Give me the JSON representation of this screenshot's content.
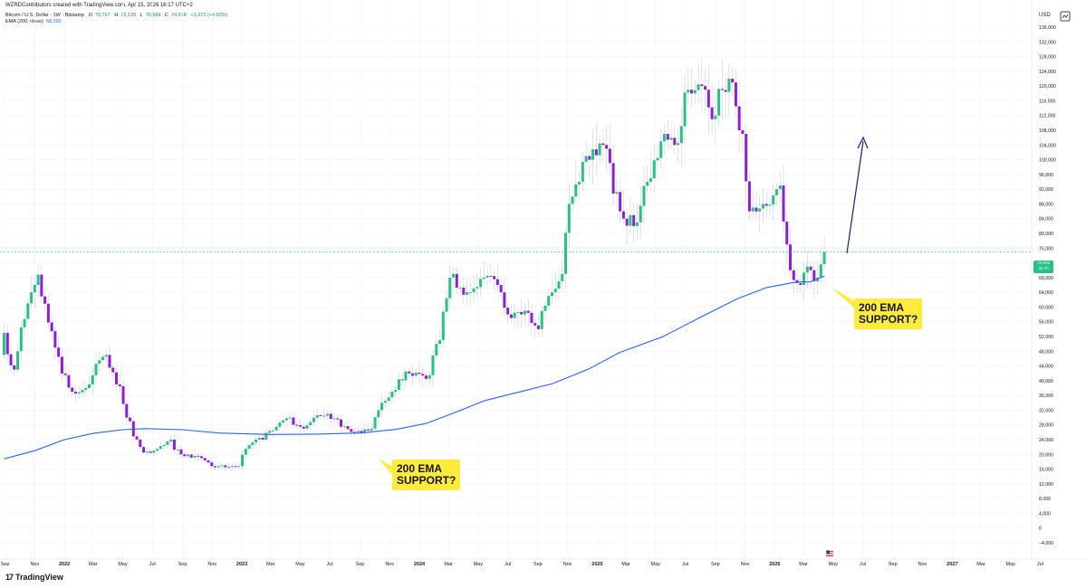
{
  "header": {
    "attribution": "WZRDContributors created with TradingView.com, Apr 15, 2026 16:17 UTC+2",
    "symbol": "Bitcoin / U.S. Dollar · 1W · Bitstamp",
    "o_label": "O",
    "o_value": "70,767",
    "h_label": "H",
    "h_value": "76,120",
    "l_label": "L",
    "l_value": "70,584",
    "c_label": "C",
    "c_value": "74,918",
    "change": "+3,272 (+4.62%)",
    "ema_label": "EMA (200, close)",
    "ema_value": "68,392"
  },
  "axis": {
    "currency": "USD",
    "last_price": "74,918",
    "countdown": "4d 7h"
  },
  "callouts": {
    "first": "200 EMA\nSUPPORT?",
    "second": "200 EMA\nSUPPORT?"
  },
  "brand": {
    "name": "TradingView",
    "logo_text": "17"
  },
  "colors": {
    "up": "#26c281",
    "down": "#8e1ed6",
    "ema": "#2962ff",
    "arrow": "#1a237e",
    "callout": "#ffeb3b"
  },
  "icons": {
    "settings": "gear-icon",
    "events": "us-flag-icon"
  },
  "chart_data": {
    "type": "candlestick",
    "title": "Bitcoin / U.S. Dollar · 1W · Bitstamp",
    "ylim": [
      -4000,
      136000
    ],
    "y_ticks": [
      -4000,
      0,
      4000,
      8000,
      12000,
      16000,
      20000,
      24000,
      28000,
      32000,
      36000,
      40000,
      44000,
      48000,
      52000,
      56000,
      60000,
      64000,
      68000,
      72000,
      76000,
      80000,
      84000,
      88000,
      92000,
      96000,
      100000,
      104000,
      108000,
      112000,
      116000,
      120000,
      124000,
      128000,
      132000,
      136000
    ],
    "y_tick_labels": [
      "−4,000",
      "0",
      "4,000",
      "8,000",
      "12,000",
      "16,000",
      "20,000",
      "24,000",
      "28,000",
      "32,000",
      "36,000",
      "40,000",
      "44,000",
      "48,000",
      "52,000",
      "56,000",
      "60,000",
      "64,000",
      "68,000",
      "72,000",
      "76,000",
      "80,000",
      "84,000",
      "88,000",
      "92,000",
      "96,000",
      "100,000",
      "104,000",
      "108,000",
      "112,000",
      "116,000",
      "120,000",
      "124,000",
      "128,000",
      "132,000",
      "136,000"
    ],
    "x_ticks": [
      "2021-09-01",
      "2021-11-01",
      "2022-01-01",
      "2022-03-01",
      "2022-05-01",
      "2022-07-01",
      "2022-09-01",
      "2022-11-01",
      "2023-01-01",
      "2023-03-01",
      "2023-05-01",
      "2023-07-01",
      "2023-09-01",
      "2023-11-01",
      "2024-01-01",
      "2024-03-01",
      "2024-05-01",
      "2024-07-01",
      "2024-09-01",
      "2024-11-01",
      "2025-01-01",
      "2025-03-01",
      "2025-05-01",
      "2025-07-01",
      "2025-09-01",
      "2025-11-01",
      "2026-01-01",
      "2026-03-01",
      "2026-05-01",
      "2026-07-01",
      "2026-09-01",
      "2026-11-01",
      "2027-01-01",
      "2027-03-01",
      "2027-05-01",
      "2027-07-01"
    ],
    "x_tick_labels": [
      "Sep",
      "Nov",
      "2022",
      "Mar",
      "May",
      "Jul",
      "Sep",
      "Nov",
      "2023",
      "Mar",
      "May",
      "Jul",
      "Sep",
      "Nov",
      "2024",
      "Mar",
      "May",
      "Jul",
      "Sep",
      "Nov",
      "2025",
      "Mar",
      "May",
      "Jul",
      "Sep",
      "Nov",
      "2026",
      "Mar",
      "May",
      "Jul",
      "Sep",
      "Nov",
      "2027",
      "Mar",
      "May",
      "Jul"
    ],
    "x_range": [
      "2021-08-29",
      "2027-07-30"
    ],
    "candle_anchors": [
      [
        "2021-08-30",
        47000,
        53000
      ],
      [
        "2021-09-27",
        43000,
        48000
      ],
      [
        "2021-10-25",
        61000,
        64000
      ],
      [
        "2021-11-08",
        66000,
        68800
      ],
      [
        "2021-12-20",
        49000,
        46500
      ],
      [
        "2022-01-24",
        37000,
        36500
      ],
      [
        "2022-02-21",
        38000,
        39000
      ],
      [
        "2022-03-28",
        46500,
        47000
      ],
      [
        "2022-04-25",
        39000,
        38500
      ],
      [
        "2022-05-16",
        30000,
        29000
      ],
      [
        "2022-06-13",
        22000,
        20500
      ],
      [
        "2022-07-11",
        21000,
        21500
      ],
      [
        "2022-08-08",
        23500,
        24000
      ],
      [
        "2022-09-05",
        20000,
        19500
      ],
      [
        "2022-10-10",
        19500,
        19000
      ],
      [
        "2022-11-07",
        16800,
        16500
      ],
      [
        "2022-12-26",
        16600,
        16800
      ],
      [
        "2023-01-16",
        21500,
        22500
      ],
      [
        "2023-02-13",
        24500,
        24000
      ],
      [
        "2023-03-13",
        26500,
        27500
      ],
      [
        "2023-04-10",
        29800,
        30000
      ],
      [
        "2023-05-08",
        27500,
        27000
      ],
      [
        "2023-06-19",
        30500,
        30500
      ],
      [
        "2023-07-17",
        29800,
        29500
      ],
      [
        "2023-08-21",
        26100,
        26000
      ],
      [
        "2023-09-25",
        26500,
        27000
      ],
      [
        "2023-10-23",
        34000,
        34500
      ],
      [
        "2023-11-13",
        37000,
        37500
      ],
      [
        "2023-12-11",
        42500,
        42000
      ],
      [
        "2024-01-22",
        40500,
        41500
      ],
      [
        "2024-02-12",
        50000,
        51000
      ],
      [
        "2024-03-11",
        68000,
        69000
      ],
      [
        "2024-04-15",
        64000,
        64000
      ],
      [
        "2024-05-20",
        68000,
        68500
      ],
      [
        "2024-06-17",
        66000,
        64000
      ],
      [
        "2024-07-08",
        58000,
        57000
      ],
      [
        "2024-08-05",
        58000,
        59000
      ],
      [
        "2024-09-02",
        55000,
        54000
      ],
      [
        "2024-09-30",
        63000,
        64000
      ],
      [
        "2024-10-21",
        67000,
        69000
      ],
      [
        "2024-11-11",
        88000,
        90000
      ],
      [
        "2024-12-16",
        101000,
        100000
      ],
      [
        "2025-01-20",
        104000,
        103000
      ],
      [
        "2025-02-24",
        86000,
        84000
      ],
      [
        "2025-03-24",
        82000,
        83000
      ],
      [
        "2025-04-21",
        94000,
        95000
      ],
      [
        "2025-05-19",
        105000,
        107000
      ],
      [
        "2025-06-16",
        104000,
        104500
      ],
      [
        "2025-07-14",
        119000,
        118000
      ],
      [
        "2025-08-11",
        120000,
        119000
      ],
      [
        "2025-09-01",
        111000,
        112000
      ],
      [
        "2025-10-06",
        122000,
        121000
      ],
      [
        "2025-10-27",
        108000,
        107000
      ],
      [
        "2025-11-17",
        86000,
        87000
      ],
      [
        "2025-12-15",
        88000,
        87500
      ],
      [
        "2026-01-12",
        92000,
        93000
      ],
      [
        "2026-02-02",
        77000,
        70000
      ],
      [
        "2026-02-23",
        66500,
        66000
      ],
      [
        "2026-03-16",
        71000,
        70000
      ],
      [
        "2026-03-30",
        67000,
        68000
      ],
      [
        "2026-04-13",
        71600,
        74918
      ]
    ],
    "ema_anchors": [
      [
        "2021-08-30",
        18800
      ],
      [
        "2021-11-01",
        21000
      ],
      [
        "2022-01-01",
        24000
      ],
      [
        "2022-03-01",
        25700
      ],
      [
        "2022-05-01",
        26700
      ],
      [
        "2022-06-15",
        27000
      ],
      [
        "2022-09-01",
        26700
      ],
      [
        "2022-11-15",
        25800
      ],
      [
        "2023-03-01",
        25400
      ],
      [
        "2023-06-01",
        25500
      ],
      [
        "2023-09-01",
        25800
      ],
      [
        "2023-11-15",
        26800
      ],
      [
        "2024-01-15",
        28400
      ],
      [
        "2024-03-15",
        31400
      ],
      [
        "2024-05-15",
        34600
      ],
      [
        "2024-08-01",
        37200
      ],
      [
        "2024-10-01",
        39200
      ],
      [
        "2024-12-15",
        43200
      ],
      [
        "2025-02-15",
        47600
      ],
      [
        "2025-05-15",
        51900
      ],
      [
        "2025-08-01",
        57200
      ],
      [
        "2025-10-15",
        62200
      ],
      [
        "2025-12-15",
        65300
      ],
      [
        "2026-02-15",
        66800
      ],
      [
        "2026-03-15",
        66800
      ],
      [
        "2026-04-13",
        68392
      ]
    ],
    "series": [
      {
        "name": "Bitcoin / U.S. Dollar · 1W · Bitstamp"
      },
      {
        "name": "EMA (200, close)"
      }
    ]
  }
}
